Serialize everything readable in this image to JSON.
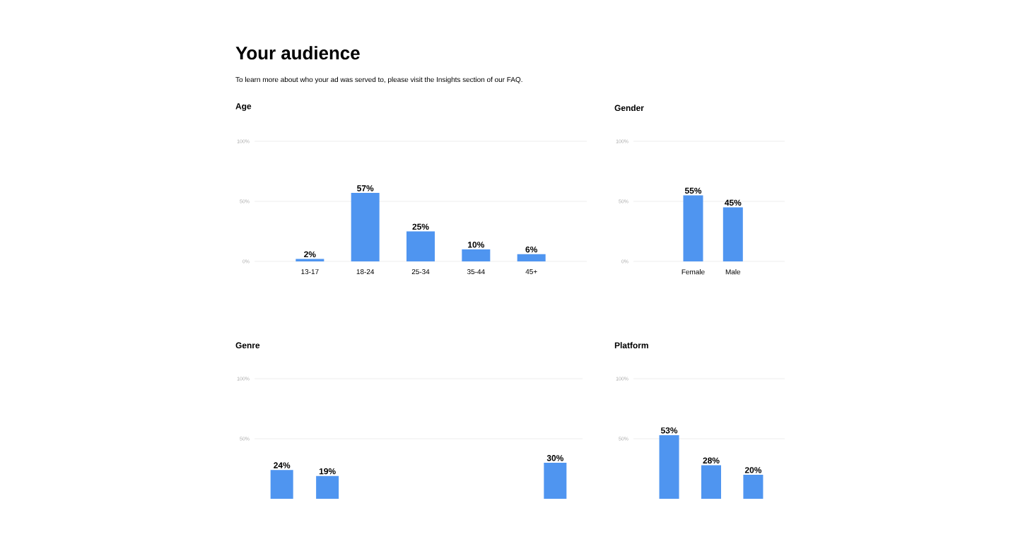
{
  "chart_data": [
    {
      "type": "other",
      "title": "Your audience",
      "subtitle": "To learn more about who your ad was served to, please visit the Insights section of our FAQ."
    },
    {
      "type": "bar",
      "title": "Age",
      "categories": [
        "13-17",
        "18-24",
        "25-34",
        "35-44",
        "45+"
      ],
      "values": [
        2,
        57,
        25,
        10,
        6
      ],
      "value_labels": [
        "2%",
        "57%",
        "25%",
        "10%",
        "6%"
      ],
      "color": "#4f95f0",
      "ylim": [
        0,
        100
      ],
      "yticks": [
        {
          "value": 0,
          "label": "0%"
        },
        {
          "value": 50,
          "label": "50%"
        },
        {
          "value": 100,
          "label": "100%"
        }
      ],
      "grid": "y"
    },
    {
      "type": "bar",
      "title": "Gender",
      "categories": [
        "Female",
        "Male"
      ],
      "values": [
        55,
        45
      ],
      "value_labels": [
        "55%",
        "45%"
      ],
      "color": "#4f95f0",
      "ylim": [
        0,
        100
      ],
      "yticks": [
        {
          "value": 0,
          "label": "0%"
        },
        {
          "value": 50,
          "label": "50%"
        },
        {
          "value": 100,
          "label": "100%"
        }
      ],
      "grid": "y"
    },
    {
      "type": "bar",
      "title": "Genre",
      "categories": [
        null,
        null,
        null,
        null,
        null,
        null,
        null
      ],
      "values": [
        24,
        19,
        null,
        null,
        null,
        null,
        30
      ],
      "value_labels": [
        "24%",
        "19%",
        null,
        null,
        null,
        null,
        "30%"
      ],
      "color": "#4f95f0",
      "ylim": [
        0,
        100
      ],
      "yticks": [
        {
          "value": 50,
          "label": "50%"
        },
        {
          "value": 100,
          "label": "100%"
        }
      ],
      "grid": "y"
    },
    {
      "type": "bar",
      "title": "Platform",
      "categories": [
        null,
        null,
        null
      ],
      "values": [
        53,
        28,
        20
      ],
      "value_labels": [
        "53%",
        "28%",
        "20%"
      ],
      "color": "#4f95f0",
      "ylim": [
        0,
        100
      ],
      "yticks": [
        {
          "value": 50,
          "label": "50%"
        },
        {
          "value": 100,
          "label": "100%"
        }
      ],
      "grid": "y"
    }
  ]
}
